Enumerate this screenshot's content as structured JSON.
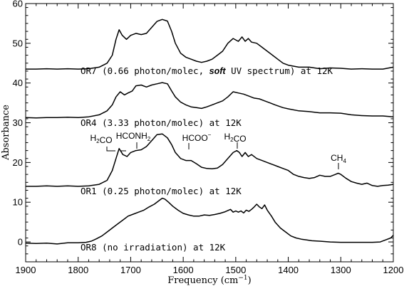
{
  "chart_data": {
    "type": "line",
    "xlabel": "Frequency (cm",
    "xlabel_sup": "−1",
    "xlabel_close": ")",
    "ylabel": "Absorbance",
    "xlim": [
      1900,
      1200
    ],
    "ylim": [
      -5,
      60
    ],
    "x_ticks": [
      "1900",
      "1800",
      "1700",
      "1600",
      "1500",
      "1400",
      "1300",
      "1200"
    ],
    "y_ticks": [
      "0",
      "10",
      "20",
      "30",
      "40",
      "50",
      "60"
    ],
    "series": [
      {
        "name": "OR7",
        "label_parts": [
          "OR7 (0.66 photon/molec, ",
          "soft",
          " UV spectrum) at 12K"
        ],
        "points": [
          [
            1900,
            43.5
          ],
          [
            1880,
            43.5
          ],
          [
            1860,
            43.6
          ],
          [
            1840,
            43.5
          ],
          [
            1820,
            43.6
          ],
          [
            1800,
            43.5
          ],
          [
            1780,
            43.6
          ],
          [
            1760,
            44
          ],
          [
            1745,
            45
          ],
          [
            1735,
            47
          ],
          [
            1728,
            51
          ],
          [
            1722,
            53.4
          ],
          [
            1716,
            52
          ],
          [
            1708,
            51
          ],
          [
            1700,
            52
          ],
          [
            1690,
            52.5
          ],
          [
            1680,
            52.2
          ],
          [
            1670,
            52.5
          ],
          [
            1660,
            54
          ],
          [
            1650,
            55.5
          ],
          [
            1640,
            56
          ],
          [
            1630,
            55.6
          ],
          [
            1622,
            53
          ],
          [
            1615,
            50
          ],
          [
            1605,
            47.5
          ],
          [
            1595,
            46.5
          ],
          [
            1585,
            46
          ],
          [
            1575,
            45.5
          ],
          [
            1565,
            45.2
          ],
          [
            1555,
            45.5
          ],
          [
            1545,
            46
          ],
          [
            1535,
            47
          ],
          [
            1525,
            48
          ],
          [
            1515,
            50
          ],
          [
            1505,
            51.2
          ],
          [
            1495,
            50.5
          ],
          [
            1488,
            51.6
          ],
          [
            1482,
            50.5
          ],
          [
            1476,
            51.2
          ],
          [
            1470,
            50.3
          ],
          [
            1460,
            50
          ],
          [
            1450,
            49
          ],
          [
            1440,
            48
          ],
          [
            1430,
            47
          ],
          [
            1420,
            46
          ],
          [
            1410,
            45
          ],
          [
            1400,
            44.5
          ],
          [
            1380,
            44
          ],
          [
            1360,
            44
          ],
          [
            1340,
            43.6
          ],
          [
            1320,
            43.8
          ],
          [
            1300,
            43.7
          ],
          [
            1280,
            43.5
          ],
          [
            1260,
            43.6
          ],
          [
            1240,
            43.5
          ],
          [
            1220,
            43.5
          ],
          [
            1200,
            44
          ]
        ]
      },
      {
        "name": "OR4",
        "label_parts": [
          "OR4 (3.33 photon/molec) at 12K"
        ],
        "points": [
          [
            1900,
            31.3
          ],
          [
            1880,
            31.2
          ],
          [
            1860,
            31.3
          ],
          [
            1840,
            31.3
          ],
          [
            1820,
            31.4
          ],
          [
            1800,
            31.3
          ],
          [
            1780,
            31.5
          ],
          [
            1760,
            32
          ],
          [
            1745,
            33
          ],
          [
            1735,
            34.5
          ],
          [
            1728,
            36.5
          ],
          [
            1720,
            37.8
          ],
          [
            1712,
            37
          ],
          [
            1705,
            37.5
          ],
          [
            1697,
            38
          ],
          [
            1690,
            39.3
          ],
          [
            1680,
            39.5
          ],
          [
            1670,
            39
          ],
          [
            1660,
            39.5
          ],
          [
            1650,
            39.8
          ],
          [
            1640,
            40.1
          ],
          [
            1630,
            39.8
          ],
          [
            1622,
            38
          ],
          [
            1615,
            36.5
          ],
          [
            1605,
            35.2
          ],
          [
            1595,
            34.5
          ],
          [
            1585,
            34
          ],
          [
            1575,
            33.8
          ],
          [
            1565,
            33.6
          ],
          [
            1555,
            34
          ],
          [
            1545,
            34.5
          ],
          [
            1535,
            35
          ],
          [
            1525,
            35.5
          ],
          [
            1515,
            36.5
          ],
          [
            1505,
            37.8
          ],
          [
            1495,
            37.5
          ],
          [
            1485,
            37.2
          ],
          [
            1475,
            36.7
          ],
          [
            1465,
            36.2
          ],
          [
            1455,
            36
          ],
          [
            1445,
            35.5
          ],
          [
            1435,
            35
          ],
          [
            1425,
            34.5
          ],
          [
            1410,
            33.8
          ],
          [
            1400,
            33.5
          ],
          [
            1380,
            33
          ],
          [
            1360,
            32.8
          ],
          [
            1340,
            32.5
          ],
          [
            1320,
            32.5
          ],
          [
            1300,
            32.4
          ],
          [
            1280,
            32
          ],
          [
            1260,
            31.8
          ],
          [
            1240,
            31.7
          ],
          [
            1220,
            31.7
          ],
          [
            1200,
            31.5
          ]
        ]
      },
      {
        "name": "OR1",
        "label_parts": [
          "OR1 (0.25 photon/molec) at 12K"
        ],
        "points": [
          [
            1900,
            14
          ],
          [
            1880,
            14
          ],
          [
            1860,
            14.1
          ],
          [
            1840,
            14
          ],
          [
            1820,
            14.1
          ],
          [
            1800,
            14
          ],
          [
            1780,
            14.1
          ],
          [
            1760,
            14.5
          ],
          [
            1745,
            15.5
          ],
          [
            1735,
            18
          ],
          [
            1728,
            21
          ],
          [
            1722,
            23.5
          ],
          [
            1715,
            22
          ],
          [
            1707,
            21.5
          ],
          [
            1700,
            22.5
          ],
          [
            1690,
            23
          ],
          [
            1680,
            23.2
          ],
          [
            1670,
            24
          ],
          [
            1660,
            25.5
          ],
          [
            1650,
            27
          ],
          [
            1640,
            27.2
          ],
          [
            1630,
            26.2
          ],
          [
            1622,
            24.5
          ],
          [
            1615,
            22.5
          ],
          [
            1605,
            21
          ],
          [
            1595,
            20.5
          ],
          [
            1585,
            20.5
          ],
          [
            1575,
            19.7
          ],
          [
            1565,
            18.8
          ],
          [
            1555,
            18.5
          ],
          [
            1545,
            18.4
          ],
          [
            1535,
            18.6
          ],
          [
            1525,
            19.5
          ],
          [
            1515,
            21
          ],
          [
            1505,
            22.5
          ],
          [
            1498,
            23
          ],
          [
            1493,
            22.5
          ],
          [
            1488,
            21.5
          ],
          [
            1482,
            22.5
          ],
          [
            1476,
            21.5
          ],
          [
            1470,
            22
          ],
          [
            1460,
            21
          ],
          [
            1450,
            20.5
          ],
          [
            1440,
            20
          ],
          [
            1430,
            19.5
          ],
          [
            1420,
            19
          ],
          [
            1410,
            18.5
          ],
          [
            1400,
            18
          ],
          [
            1390,
            17
          ],
          [
            1380,
            16.5
          ],
          [
            1370,
            16.2
          ],
          [
            1360,
            16
          ],
          [
            1350,
            16.2
          ],
          [
            1340,
            16.8
          ],
          [
            1330,
            16.5
          ],
          [
            1320,
            16.5
          ],
          [
            1310,
            17
          ],
          [
            1305,
            17.3
          ],
          [
            1300,
            17
          ],
          [
            1290,
            16
          ],
          [
            1280,
            15.2
          ],
          [
            1270,
            14.8
          ],
          [
            1260,
            14.5
          ],
          [
            1250,
            14.8
          ],
          [
            1240,
            14.2
          ],
          [
            1230,
            14
          ],
          [
            1220,
            14.2
          ],
          [
            1210,
            14.3
          ],
          [
            1200,
            14.5
          ]
        ]
      },
      {
        "name": "OR8",
        "label_parts": [
          "OR8 (no irradiation) at 12K"
        ],
        "points": [
          [
            1900,
            -0.3
          ],
          [
            1880,
            -0.4
          ],
          [
            1860,
            -0.3
          ],
          [
            1840,
            -0.5
          ],
          [
            1820,
            -0.2
          ],
          [
            1800,
            -0.2
          ],
          [
            1785,
            -0.1
          ],
          [
            1775,
            0.2
          ],
          [
            1765,
            0.8
          ],
          [
            1755,
            1.5
          ],
          [
            1745,
            2.5
          ],
          [
            1735,
            3.5
          ],
          [
            1725,
            4.5
          ],
          [
            1715,
            5.5
          ],
          [
            1705,
            6.5
          ],
          [
            1695,
            7
          ],
          [
            1685,
            7.5
          ],
          [
            1675,
            8
          ],
          [
            1665,
            8.8
          ],
          [
            1655,
            9.5
          ],
          [
            1645,
            10.5
          ],
          [
            1640,
            11
          ],
          [
            1635,
            10.8
          ],
          [
            1628,
            10
          ],
          [
            1620,
            9
          ],
          [
            1610,
            8
          ],
          [
            1600,
            7.2
          ],
          [
            1590,
            6.8
          ],
          [
            1580,
            6.5
          ],
          [
            1570,
            6.5
          ],
          [
            1560,
            6.8
          ],
          [
            1550,
            6.7
          ],
          [
            1540,
            6.9
          ],
          [
            1530,
            7.2
          ],
          [
            1520,
            7.6
          ],
          [
            1510,
            8.2
          ],
          [
            1505,
            7.5
          ],
          [
            1500,
            7.8
          ],
          [
            1495,
            7.5
          ],
          [
            1490,
            7.8
          ],
          [
            1485,
            7.3
          ],
          [
            1480,
            8
          ],
          [
            1475,
            7.7
          ],
          [
            1470,
            8.2
          ],
          [
            1465,
            8.8
          ],
          [
            1460,
            9.5
          ],
          [
            1455,
            8.8
          ],
          [
            1450,
            8.4
          ],
          [
            1445,
            9.3
          ],
          [
            1440,
            8
          ],
          [
            1432,
            6.5
          ],
          [
            1425,
            5
          ],
          [
            1415,
            3.5
          ],
          [
            1405,
            2.5
          ],
          [
            1395,
            1.5
          ],
          [
            1385,
            1
          ],
          [
            1375,
            0.7
          ],
          [
            1365,
            0.5
          ],
          [
            1355,
            0.3
          ],
          [
            1340,
            0.2
          ],
          [
            1320,
            0
          ],
          [
            1300,
            -0.1
          ],
          [
            1280,
            -0.1
          ],
          [
            1260,
            -0.1
          ],
          [
            1240,
            -0.1
          ],
          [
            1225,
            0
          ],
          [
            1215,
            0.5
          ],
          [
            1205,
            1
          ],
          [
            1200,
            1.7
          ]
        ]
      }
    ],
    "annotations": [
      {
        "id": "h2co-left",
        "text": "H2CO"
      },
      {
        "id": "hconh2",
        "text": "HCONH2"
      },
      {
        "id": "hcoo",
        "text": "HCOO−"
      },
      {
        "id": "h2co-right",
        "text": "H2CO"
      },
      {
        "id": "ch4",
        "text": "CH4"
      }
    ]
  }
}
